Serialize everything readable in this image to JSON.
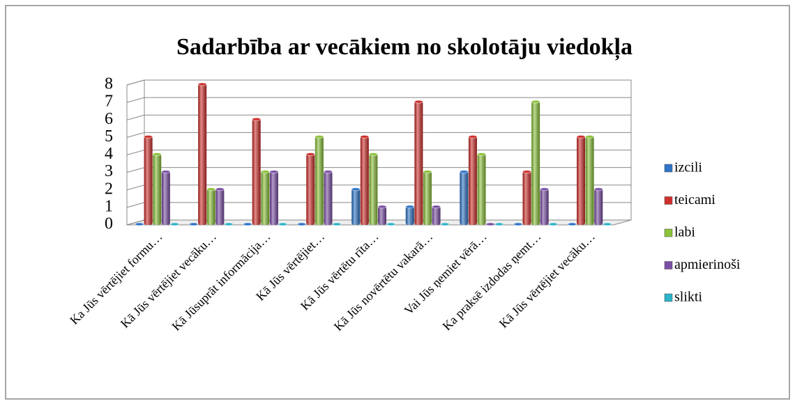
{
  "chart_data": {
    "type": "bar3d",
    "title": "Sadarbība ar vecākiem no skolotāju viedokļa",
    "categories": [
      "Ka Jūs vērtējiet formu…",
      "Kā Jūs vērtējiet vecāku…",
      "Kā Jūsuprāt informācija…",
      "Kā Jūs vērtējiet…",
      "Kā Jūs vērtētu rīta…",
      "Kā Jūs novērtētu vakarā…",
      "Vai Jūs ņemiet vērā…",
      "Ka praksē izdodas ņemt…",
      "Kā Jūs vērtējiet vecāku…"
    ],
    "series": [
      {
        "name": "izcili",
        "color": "#2e75c8",
        "values": [
          0,
          0,
          0,
          0,
          2,
          1,
          3,
          0,
          0
        ]
      },
      {
        "name": "teicami",
        "color": "#d0312d",
        "values": [
          5,
          8,
          6,
          4,
          5,
          7,
          5,
          3,
          5
        ]
      },
      {
        "name": "labi",
        "color": "#8cc33a",
        "values": [
          4,
          2,
          3,
          5,
          4,
          3,
          4,
          7,
          5
        ]
      },
      {
        "name": "apmierinoši",
        "color": "#7b4fa6",
        "values": [
          3,
          2,
          3,
          3,
          1,
          1,
          0,
          2,
          2
        ]
      },
      {
        "name": "slikti",
        "color": "#2eb3c8",
        "values": [
          0,
          0,
          0,
          0,
          0,
          0,
          0,
          0,
          0
        ]
      }
    ],
    "ylim": [
      0,
      8
    ],
    "yticks": [
      0,
      1,
      2,
      3,
      4,
      5,
      6,
      7,
      8
    ],
    "grid": true,
    "legend": "right"
  }
}
